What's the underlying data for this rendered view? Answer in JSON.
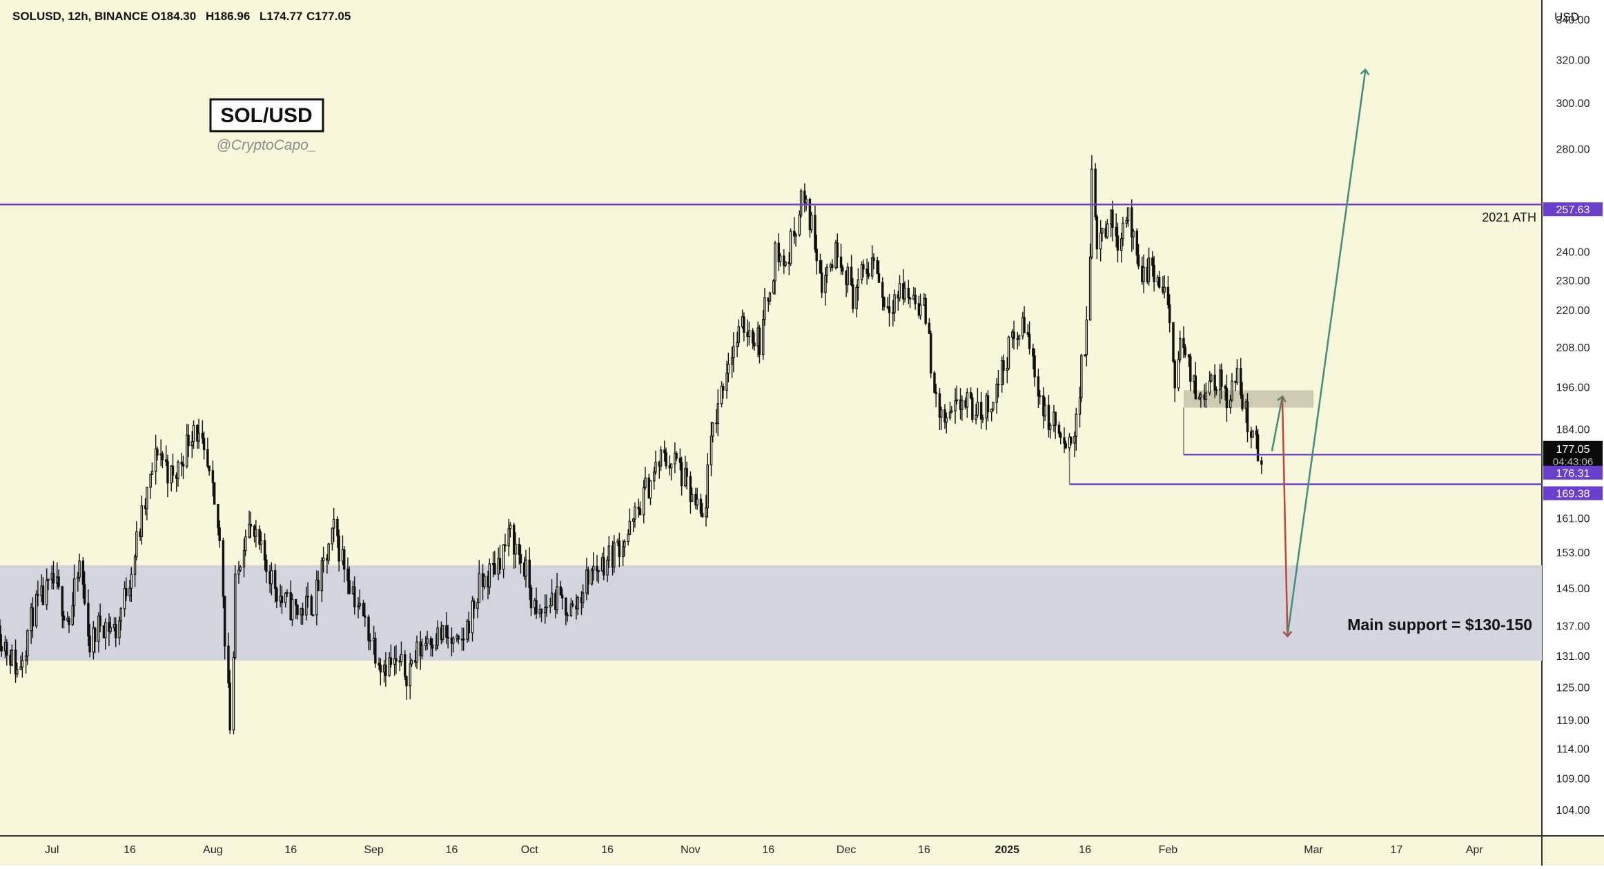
{
  "header": {
    "symbol": "SOLUSD, 12h, BINANCE",
    "open": "O184.30",
    "high": "H186.96",
    "low": "L174.77",
    "close": "C177.05"
  },
  "watermark": {
    "title": "SOL/USD",
    "handle": "@CryptoCapo_"
  },
  "colors": {
    "background": "#f8f7dc",
    "candle": "#111111",
    "purple_line": "#6a3fd0",
    "support_zone": "#d3d4dd",
    "resistance_box": "#c9c5ad",
    "green_arrow": "#3f8f7c",
    "red_arrow": "#c0443d",
    "dark_tag": "#0b0b0b"
  },
  "chart_data": {
    "type": "candlestick",
    "symbol": "SOLUSD",
    "interval": "12h",
    "exchange": "BINANCE",
    "currency_label": "USD",
    "ylim": [
      100,
      350
    ],
    "y_ticks": [
      "340.00",
      "320.00",
      "300.00",
      "280.00",
      "257.63",
      "240.00",
      "230.00",
      "220.00",
      "208.00",
      "196.00",
      "184.00",
      "177.05",
      "176.31",
      "169.38",
      "161.00",
      "153.00",
      "145.00",
      "137.00",
      "131.00",
      "125.00",
      "119.00",
      "114.00",
      "109.00",
      "104.00"
    ],
    "y_scale_values": [
      340,
      320,
      300,
      280,
      240,
      230,
      220,
      208,
      196,
      184,
      161,
      153,
      145,
      137,
      131,
      125,
      119,
      114,
      109,
      104
    ],
    "x_range": [
      "2024-06-21",
      "2025-04-14"
    ],
    "x_ticks": [
      {
        "label": "Jul",
        "date": "2024-07-01"
      },
      {
        "label": "16",
        "date": "2024-07-16"
      },
      {
        "label": "Aug",
        "date": "2024-08-01"
      },
      {
        "label": "16",
        "date": "2024-08-16"
      },
      {
        "label": "Sep",
        "date": "2024-09-01"
      },
      {
        "label": "16",
        "date": "2024-09-16"
      },
      {
        "label": "Oct",
        "date": "2024-10-01"
      },
      {
        "label": "16",
        "date": "2024-10-16"
      },
      {
        "label": "Nov",
        "date": "2024-11-01"
      },
      {
        "label": "16",
        "date": "2024-11-16"
      },
      {
        "label": "Dec",
        "date": "2024-12-01"
      },
      {
        "label": "16",
        "date": "2024-12-16"
      },
      {
        "label": "2025",
        "date": "2025-01-01"
      },
      {
        "label": "16",
        "date": "2025-01-16"
      },
      {
        "label": "Feb",
        "date": "2025-02-01"
      },
      {
        "label": "Mar",
        "date": "2025-03-01"
      },
      {
        "label": "17",
        "date": "2025-03-17"
      },
      {
        "label": "Apr",
        "date": "2025-04-01"
      }
    ],
    "price_path": [
      {
        "date": "2024-06-21",
        "price": 137
      },
      {
        "date": "2024-06-25",
        "price": 128
      },
      {
        "date": "2024-06-28",
        "price": 140
      },
      {
        "date": "2024-07-02",
        "price": 146
      },
      {
        "date": "2024-07-05",
        "price": 138
      },
      {
        "date": "2024-07-07",
        "price": 150
      },
      {
        "date": "2024-07-09",
        "price": 133
      },
      {
        "date": "2024-07-11",
        "price": 138
      },
      {
        "date": "2024-07-14",
        "price": 136
      },
      {
        "date": "2024-07-17",
        "price": 150
      },
      {
        "date": "2024-07-19",
        "price": 161
      },
      {
        "date": "2024-07-22",
        "price": 179
      },
      {
        "date": "2024-07-25",
        "price": 170
      },
      {
        "date": "2024-07-29",
        "price": 186
      },
      {
        "date": "2024-08-01",
        "price": 170
      },
      {
        "date": "2024-08-03",
        "price": 155
      },
      {
        "date": "2024-08-05",
        "price": 118
      },
      {
        "date": "2024-08-06",
        "price": 145
      },
      {
        "date": "2024-08-08",
        "price": 160
      },
      {
        "date": "2024-08-12",
        "price": 150
      },
      {
        "date": "2024-08-15",
        "price": 142
      },
      {
        "date": "2024-08-18",
        "price": 140
      },
      {
        "date": "2024-08-21",
        "price": 142
      },
      {
        "date": "2024-08-25",
        "price": 158
      },
      {
        "date": "2024-08-27",
        "price": 150
      },
      {
        "date": "2024-08-30",
        "price": 140
      },
      {
        "date": "2024-09-03",
        "price": 130
      },
      {
        "date": "2024-09-06",
        "price": 129
      },
      {
        "date": "2024-09-08",
        "price": 128
      },
      {
        "date": "2024-09-12",
        "price": 135
      },
      {
        "date": "2024-09-15",
        "price": 135
      },
      {
        "date": "2024-09-18",
        "price": 132
      },
      {
        "date": "2024-09-22",
        "price": 145
      },
      {
        "date": "2024-09-25",
        "price": 150
      },
      {
        "date": "2024-09-28",
        "price": 157
      },
      {
        "date": "2024-10-01",
        "price": 148
      },
      {
        "date": "2024-10-03",
        "price": 138
      },
      {
        "date": "2024-10-06",
        "price": 143
      },
      {
        "date": "2024-10-10",
        "price": 140
      },
      {
        "date": "2024-10-13",
        "price": 148
      },
      {
        "date": "2024-10-17",
        "price": 152
      },
      {
        "date": "2024-10-21",
        "price": 158
      },
      {
        "date": "2024-10-24",
        "price": 168
      },
      {
        "date": "2024-10-27",
        "price": 176
      },
      {
        "date": "2024-10-30",
        "price": 175
      },
      {
        "date": "2024-11-02",
        "price": 165
      },
      {
        "date": "2024-11-04",
        "price": 160
      },
      {
        "date": "2024-11-06",
        "price": 185
      },
      {
        "date": "2024-11-09",
        "price": 205
      },
      {
        "date": "2024-11-12",
        "price": 215
      },
      {
        "date": "2024-11-15",
        "price": 210
      },
      {
        "date": "2024-11-18",
        "price": 240
      },
      {
        "date": "2024-11-20",
        "price": 235
      },
      {
        "date": "2024-11-23",
        "price": 260
      },
      {
        "date": "2024-11-25",
        "price": 250
      },
      {
        "date": "2024-11-27",
        "price": 230
      },
      {
        "date": "2024-11-30",
        "price": 242
      },
      {
        "date": "2024-12-03",
        "price": 225
      },
      {
        "date": "2024-12-05",
        "price": 232
      },
      {
        "date": "2024-12-07",
        "price": 238
      },
      {
        "date": "2024-12-09",
        "price": 222
      },
      {
        "date": "2024-12-12",
        "price": 226
      },
      {
        "date": "2024-12-15",
        "price": 224
      },
      {
        "date": "2024-12-17",
        "price": 218
      },
      {
        "date": "2024-12-19",
        "price": 190
      },
      {
        "date": "2024-12-21",
        "price": 185
      },
      {
        "date": "2024-12-24",
        "price": 192
      },
      {
        "date": "2024-12-27",
        "price": 188
      },
      {
        "date": "2024-12-30",
        "price": 193
      },
      {
        "date": "2025-01-02",
        "price": 208
      },
      {
        "date": "2025-01-05",
        "price": 215
      },
      {
        "date": "2025-01-07",
        "price": 200
      },
      {
        "date": "2025-01-09",
        "price": 187
      },
      {
        "date": "2025-01-11",
        "price": 185
      },
      {
        "date": "2025-01-13",
        "price": 176
      },
      {
        "date": "2025-01-15",
        "price": 188
      },
      {
        "date": "2025-01-17",
        "price": 215
      },
      {
        "date": "2025-01-18",
        "price": 270
      },
      {
        "date": "2025-01-19",
        "price": 245
      },
      {
        "date": "2025-01-21",
        "price": 252
      },
      {
        "date": "2025-01-23",
        "price": 246
      },
      {
        "date": "2025-01-25",
        "price": 255
      },
      {
        "date": "2025-01-27",
        "price": 230
      },
      {
        "date": "2025-01-29",
        "price": 235
      },
      {
        "date": "2025-02-01",
        "price": 225
      },
      {
        "date": "2025-02-03",
        "price": 200
      },
      {
        "date": "2025-02-04",
        "price": 210
      },
      {
        "date": "2025-02-07",
        "price": 193
      },
      {
        "date": "2025-02-10",
        "price": 200
      },
      {
        "date": "2025-02-13",
        "price": 194
      },
      {
        "date": "2025-02-15",
        "price": 198
      },
      {
        "date": "2025-02-17",
        "price": 186
      },
      {
        "date": "2025-02-19",
        "price": 177
      }
    ],
    "levels": [
      {
        "name": "2021 ATH",
        "value": 257.63,
        "label": "2021 ATH",
        "tag": "257.63",
        "start": "2024-06-21"
      },
      {
        "name": "current price",
        "value": 177.05,
        "tag": "177.05",
        "countdown": "04:43:06",
        "start": "2025-02-04"
      },
      {
        "name": "support 176.31",
        "value": 176.31,
        "tag": "176.31",
        "start": "2025-02-04"
      },
      {
        "name": "support 169.38",
        "value": 169.38,
        "tag": "169.38",
        "start": "2025-01-13"
      }
    ],
    "zones": [
      {
        "name": "main support",
        "low": 130,
        "high": 150
      },
      {
        "name": "resistance box",
        "low": 190,
        "high": 195,
        "start": "2025-02-04",
        "end": "2025-03-01"
      }
    ],
    "arrows": [
      {
        "color": "green",
        "from": {
          "date": "2025-02-21",
          "price": 178
        },
        "to": {
          "date": "2025-02-23",
          "price": 193
        }
      },
      {
        "color": "red",
        "from": {
          "date": "2025-02-23",
          "price": 193
        },
        "to": {
          "date": "2025-02-24",
          "price": 135
        }
      },
      {
        "color": "green",
        "from": {
          "date": "2025-02-24",
          "price": 135
        },
        "to": {
          "date": "2025-03-11",
          "price": 315
        }
      }
    ],
    "annotations": [
      {
        "text": "Main support = $130-150"
      },
      {
        "text": "2021 ATH"
      }
    ]
  }
}
